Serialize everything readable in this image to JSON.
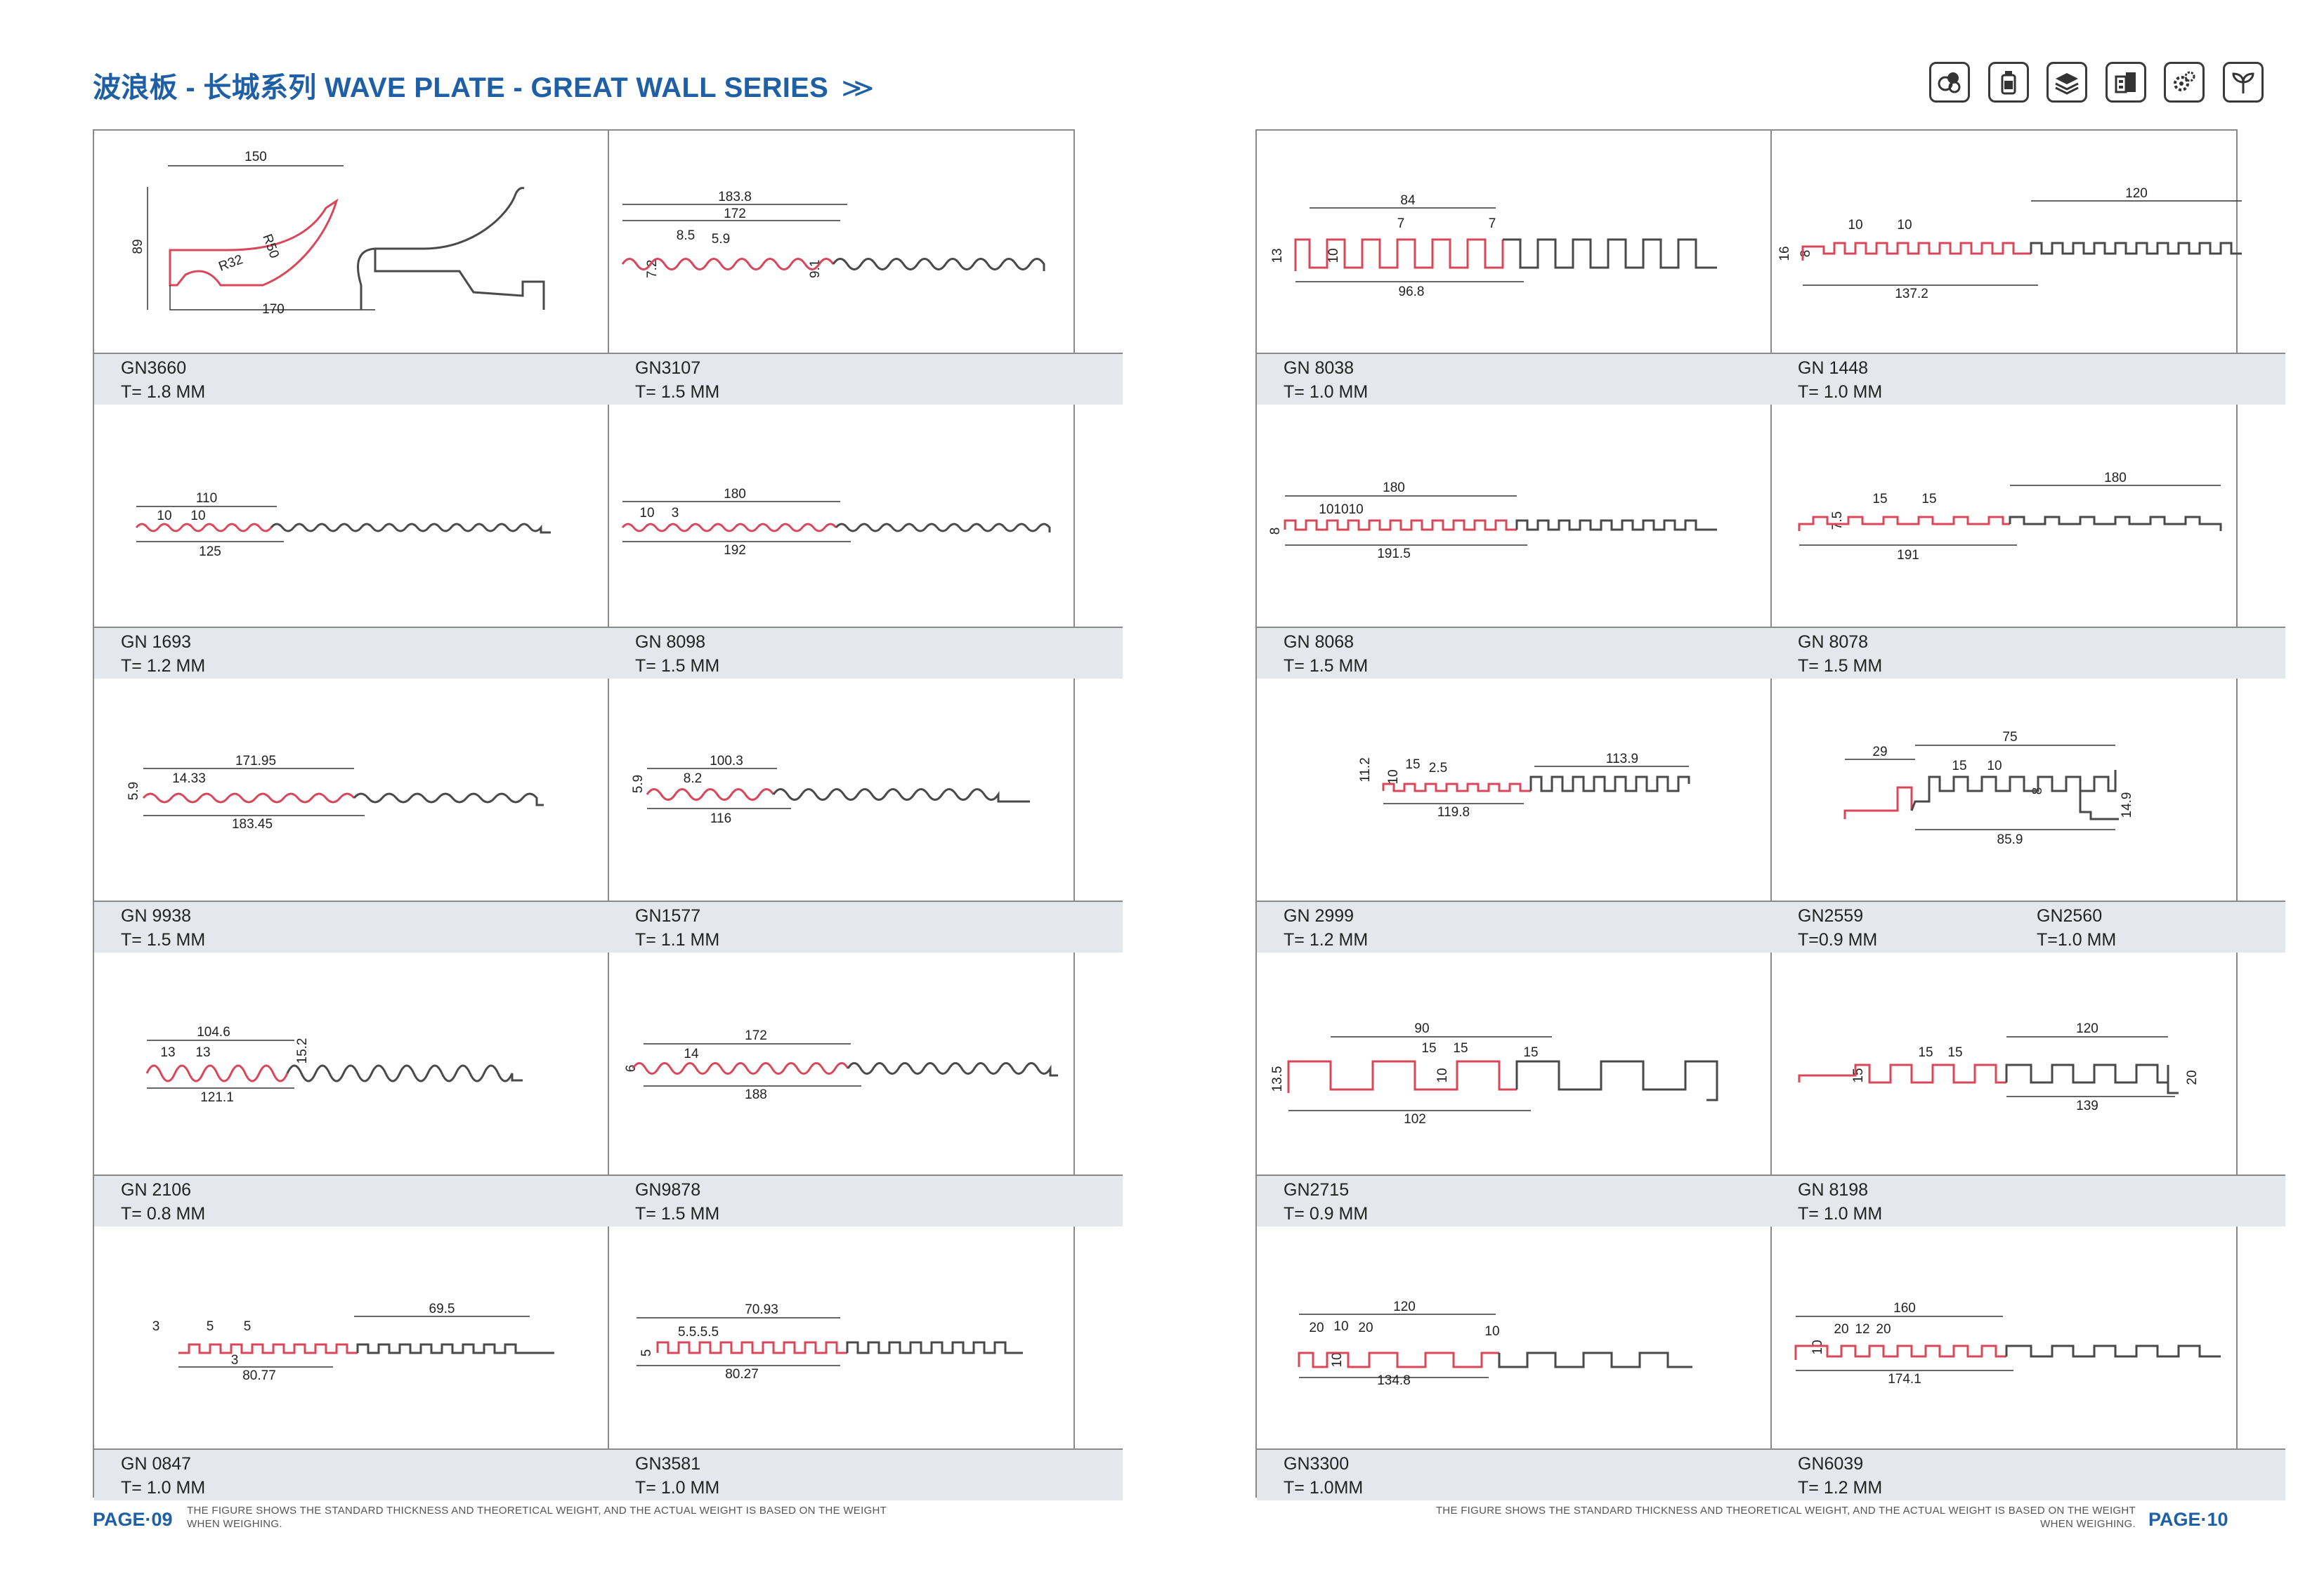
{
  "header": {
    "title": "波浪板 - 长城系列 WAVE PLATE - GREAT WALL SERIES",
    "arrows": "≫",
    "icons": [
      "palette-icon",
      "bottle-icon",
      "layers-icon",
      "building-icon",
      "gears-icon",
      "plant-icon"
    ]
  },
  "left_panel": {
    "cells": [
      {
        "code": "GN3660",
        "thickness": "T= 1.8 MM",
        "dims": [
          "150",
          "89",
          "R50",
          "R32",
          "170"
        ]
      },
      {
        "code": "GN3107",
        "thickness": "T= 1.5 MM",
        "dims": [
          "183.8",
          "172",
          "8.5",
          "5.9",
          "7.2",
          "9.1"
        ]
      },
      {
        "code": "GN 1693",
        "thickness": "T= 1.2 MM",
        "dims": [
          "110",
          "10",
          "10",
          "125"
        ]
      },
      {
        "code": "GN 8098",
        "thickness": "T= 1.5 MM",
        "dims": [
          "180",
          "10",
          "3",
          "192"
        ]
      },
      {
        "code": "GN 9938",
        "thickness": "T= 1.5 MM",
        "dims": [
          "171.95",
          "14.33",
          "5.9",
          "183.45"
        ]
      },
      {
        "code": "GN1577",
        "thickness": "T= 1.1 MM",
        "dims": [
          "100.3",
          "8.2",
          "5.9",
          "116"
        ]
      },
      {
        "code": "GN  2106",
        "thickness": "T= 0.8 MM",
        "dims": [
          "104.6",
          "13",
          "13",
          "15.2",
          "121.1"
        ]
      },
      {
        "code": "GN9878",
        "thickness": "T= 1.5 MM",
        "dims": [
          "172",
          "14",
          "6",
          "188"
        ]
      },
      {
        "code": "GN 0847",
        "thickness": "T= 1.0 MM",
        "dims": [
          "69.5",
          "3",
          "5",
          "5",
          "3",
          "80.77"
        ]
      },
      {
        "code": "GN3581",
        "thickness": "T= 1.0 MM",
        "dims": [
          "70.93",
          "5.5.5.5",
          "5",
          "80.27"
        ]
      }
    ]
  },
  "right_panel": {
    "cells": [
      {
        "code": "GN  8038",
        "thickness": "T= 1.0 MM",
        "dims": [
          "84",
          "7",
          "7",
          "13",
          "10",
          "96.8"
        ]
      },
      {
        "code": "GN 1448",
        "thickness": "T= 1.0 MM",
        "dims": [
          "120",
          "10",
          "10",
          "16",
          "8",
          "137.2"
        ]
      },
      {
        "code": "GN 8068",
        "thickness": "T= 1.5 MM",
        "dims": [
          "180",
          "101010",
          "8",
          "191.5"
        ]
      },
      {
        "code": "GN 8078",
        "thickness": "T= 1.5 MM",
        "dims": [
          "180",
          "15",
          "15",
          "7.5",
          "191"
        ]
      },
      {
        "code": "GN 2999",
        "thickness": "T= 1.2 MM",
        "dims": [
          "113.9",
          "11.2",
          "10",
          "15",
          "2.5",
          "119.8"
        ]
      },
      {
        "code": "GN2559",
        "thickness": "T=0.9 MM",
        "code2": "GN2560",
        "thickness2": "T=1.0 MM",
        "dims": [
          "75",
          "29",
          "15",
          "10",
          "8",
          "14.9",
          "85.9"
        ]
      },
      {
        "code": "GN2715",
        "thickness": "T=  0.9 MM",
        "dims": [
          "90",
          "15",
          "15",
          "15",
          "10",
          "13.5",
          "102"
        ]
      },
      {
        "code": "GN 8198",
        "thickness": "T=  1.0 MM",
        "dims": [
          "120",
          "15",
          "15",
          "15",
          "20",
          "139"
        ]
      },
      {
        "code": "GN3300",
        "thickness": "T= 1.0MM",
        "dims": [
          "120",
          "20",
          "10",
          "20",
          "10",
          "10",
          "134.8"
        ]
      },
      {
        "code": "GN6039",
        "thickness": "T= 1.2 MM",
        "dims": [
          "160",
          "20",
          "12",
          "20",
          "10",
          "174.1"
        ]
      }
    ]
  },
  "footer": {
    "left_page": "PAGE·09",
    "right_page": "PAGE·10",
    "note": "THE FIGURE SHOWS THE STANDARD THICKNESS AND THEORETICAL WEIGHT, AND THE ACTUAL WEIGHT IS BASED ON THE WEIGHT WHEN WEIGHING."
  },
  "colors": {
    "title": "#1e5fa6",
    "profile_highlight": "#d9475a",
    "profile_line": "#4a4a4a",
    "label_bg": "#e4e8ec"
  }
}
